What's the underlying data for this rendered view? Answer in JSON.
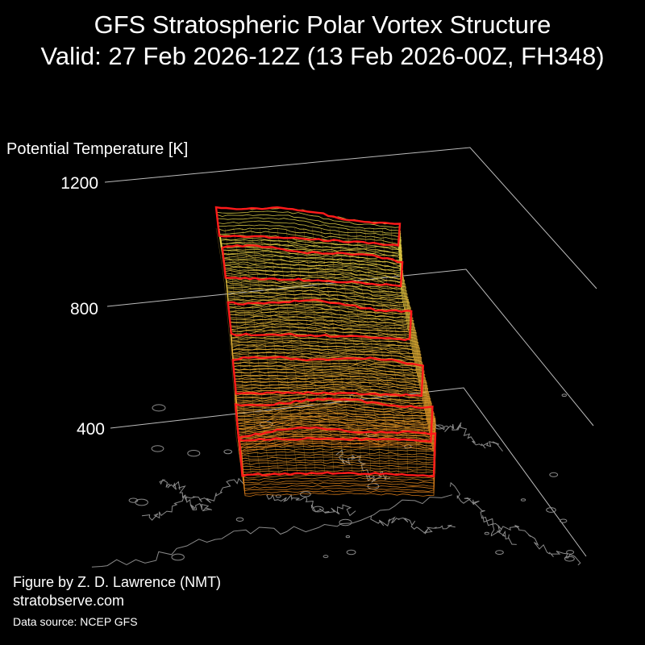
{
  "title": {
    "line1": "GFS Stratospheric Polar Vortex Structure",
    "line2": "Valid: 27 Feb 2026-12Z  (13 Feb 2026-00Z, FH348)"
  },
  "axis": {
    "label": "Potential Temperature [K]",
    "ticks": [
      "1200",
      "800",
      "400"
    ]
  },
  "credits": {
    "author": "Figure by Z. D. Lawrence (NMT)",
    "site": "stratobserve.com",
    "source": "Data source: NCEP GFS"
  },
  "colors": {
    "background": "#000000",
    "highlight_contour": "#ff1a1a",
    "upper_contours": "#e6d84a",
    "lower_contours": "#e0801a",
    "coastline": "#8a8a8a",
    "grid": "#bbbbbb"
  }
}
